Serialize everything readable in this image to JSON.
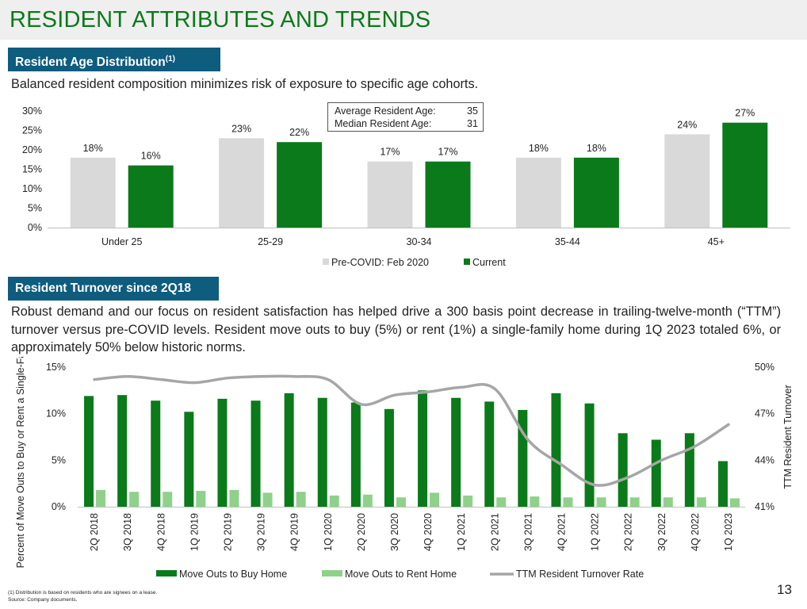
{
  "page": {
    "title": "RESIDENT ATTRIBUTES AND TRENDS",
    "page_number": "13"
  },
  "section1": {
    "header": "Resident Age Distribution",
    "header_sup": "(1)",
    "subtitle": "Balanced resident composition minimizes risk of exposure to specific age cohorts.",
    "stats": {
      "avg_label": "Average Resident Age:",
      "avg_value": "35",
      "median_label": "Median Resident Age:",
      "median_value": "31"
    }
  },
  "section2": {
    "header": "Resident Turnover since 2Q18",
    "paragraph": "Robust demand and our focus on resident satisfaction has helped drive a 300 basis point decrease in trailing-twelve-month (“TTM”) turnover versus pre-COVID levels. Resident move outs to buy (5%) or rent (1%) a single-family home during 1Q 2023 totaled 6%, or approximately 50% below historic norms."
  },
  "footnotes": {
    "note1": "(1)    Distribution is based on residents who are signees on a lease.",
    "source": "Source:  Company documents."
  },
  "colors": {
    "dark_green": "#0b7a1a",
    "light_green": "#8fd18a",
    "gray_bar": "#d9d9d9",
    "line_gray": "#a6a6a6",
    "header_blue": "#0e5c7e"
  },
  "chart_data": [
    {
      "type": "bar",
      "categories": [
        "Under 25",
        "25-29",
        "30-34",
        "35-44",
        "45+"
      ],
      "series": [
        {
          "name": "Pre-COVID: Feb 2020",
          "values": [
            18,
            23,
            17,
            18,
            24
          ],
          "labels": [
            "18%",
            "23%",
            "17%",
            "18%",
            "24%"
          ],
          "color": "#d9d9d9"
        },
        {
          "name": "Current",
          "values": [
            16,
            22,
            17,
            18,
            27
          ],
          "labels": [
            "16%",
            "22%",
            "17%",
            "18%",
            "27%"
          ],
          "color": "#0b7a1a"
        }
      ],
      "ylim": [
        0,
        30
      ],
      "yticks": [
        0,
        5,
        10,
        15,
        20,
        25,
        30
      ],
      "ytick_labels": [
        "0%",
        "5%",
        "10%",
        "15%",
        "20%",
        "25%",
        "30%"
      ],
      "legend": "bottom-center"
    },
    {
      "type": "bar",
      "categories": [
        "2Q 2018",
        "3Q 2018",
        "4Q 2018",
        "1Q 2019",
        "2Q 2019",
        "3Q 2019",
        "4Q 2019",
        "1Q 2020",
        "2Q 2020",
        "3Q 2020",
        "4Q 2020",
        "1Q 2021",
        "2Q 2021",
        "3Q 2021",
        "4Q 2021",
        "1Q 2022",
        "2Q 2022",
        "3Q 2022",
        "4Q 2022",
        "1Q 2023"
      ],
      "ylabel": "Percent of Move Outs to Buy or Rent a Single-Family Home",
      "y2label": "TTM Resident Turnover",
      "ylim": [
        0,
        15
      ],
      "yticks": [
        0,
        5,
        10,
        15
      ],
      "ytick_labels": [
        "0%",
        "5%",
        "10%",
        "15%"
      ],
      "y2lim": [
        41,
        50
      ],
      "y2ticks": [
        41,
        44,
        47,
        50
      ],
      "y2tick_labels": [
        "41%",
        "44%",
        "47%",
        "50%"
      ],
      "series": [
        {
          "name": "Move Outs to Buy Home",
          "type": "bar",
          "axis": "left",
          "color": "#0b7a1a",
          "values": [
            11.9,
            12.0,
            11.4,
            10.2,
            11.6,
            11.4,
            12.2,
            11.7,
            11.2,
            10.5,
            12.5,
            11.7,
            11.3,
            10.4,
            12.2,
            11.1,
            7.9,
            7.2,
            7.9,
            4.9
          ]
        },
        {
          "name": "Move Outs to Rent Home",
          "type": "bar",
          "axis": "left",
          "color": "#8fd18a",
          "values": [
            1.8,
            1.6,
            1.6,
            1.7,
            1.8,
            1.5,
            1.6,
            1.2,
            1.3,
            1.0,
            1.5,
            1.2,
            1.0,
            1.1,
            1.0,
            1.0,
            1.0,
            1.0,
            1.0,
            0.9
          ]
        },
        {
          "name": "TTM Resident Turnover Rate",
          "type": "line",
          "axis": "right",
          "color": "#a6a6a6",
          "values": [
            49.2,
            49.4,
            49.2,
            49.0,
            49.3,
            49.4,
            49.4,
            49.2,
            47.6,
            48.2,
            48.4,
            48.7,
            48.6,
            45.3,
            43.7,
            42.4,
            42.9,
            44.0,
            44.9,
            46.3
          ]
        }
      ],
      "legend": "bottom-center"
    }
  ]
}
